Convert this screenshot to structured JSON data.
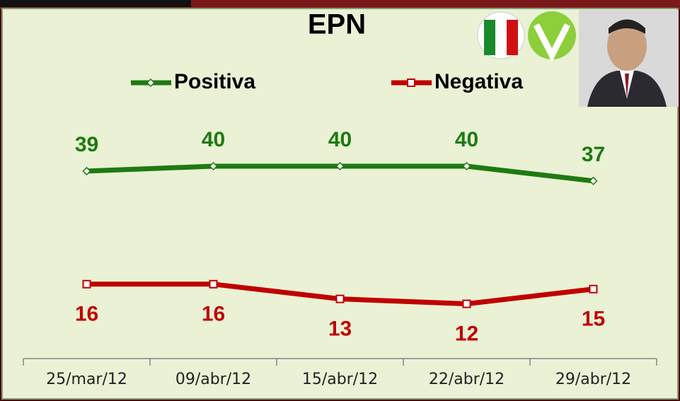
{
  "chart_data": {
    "type": "line",
    "title": "EPN",
    "categories": [
      "25/mar/12",
      "09/abr/12",
      "15/abr/12",
      "22/abr/12",
      "29/abr/12"
    ],
    "series": [
      {
        "name": "Positiva",
        "color": "#1e7a12",
        "values": [
          39,
          40,
          40,
          40,
          37
        ]
      },
      {
        "name": "Negativa",
        "color": "#c00000",
        "values": [
          16,
          16,
          13,
          12,
          15
        ]
      }
    ]
  }
}
